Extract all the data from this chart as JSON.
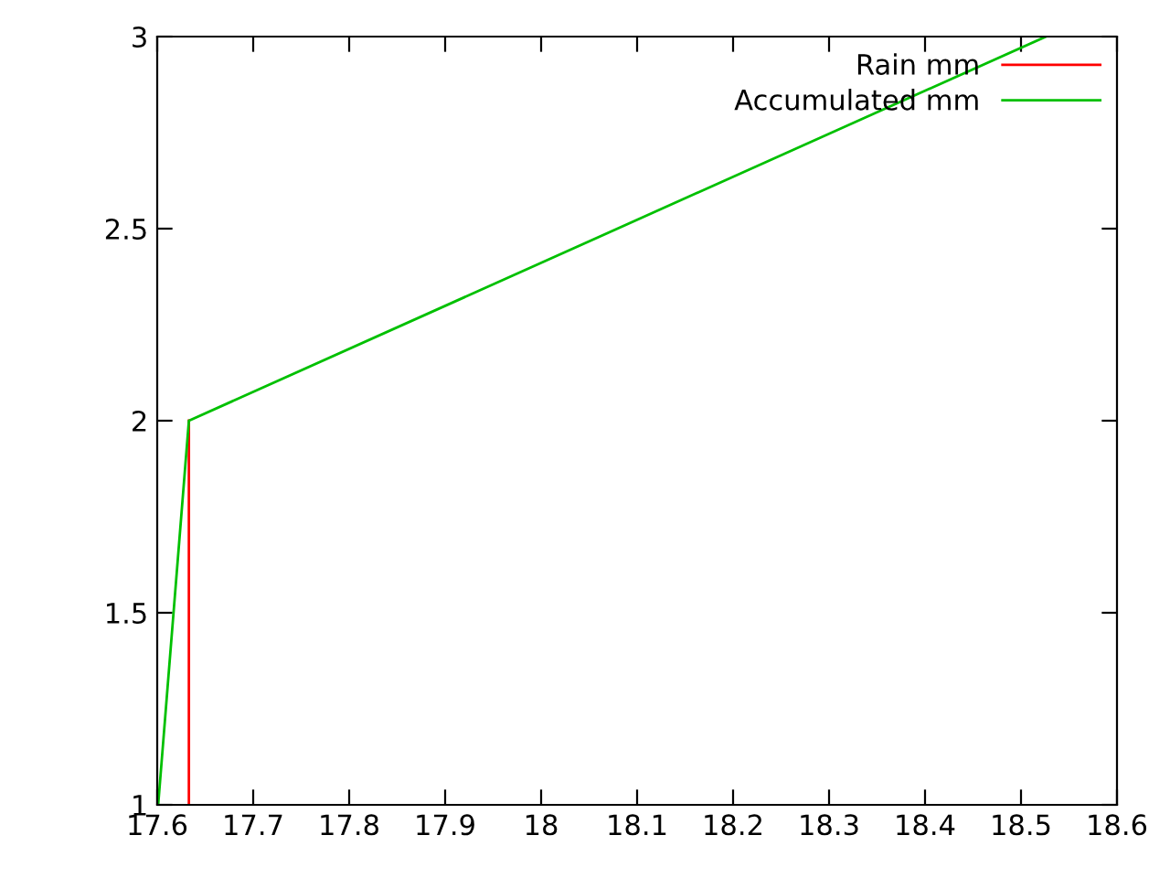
{
  "chart_data": {
    "type": "line",
    "series": [
      {
        "name": "Rain mm",
        "color": "#ff0000",
        "x": [
          17.633,
          17.633
        ],
        "values": [
          1,
          2
        ]
      },
      {
        "name": "Accumulated mm",
        "color": "#00c000",
        "x": [
          17.601,
          17.633,
          18.526
        ],
        "values": [
          1,
          2,
          3
        ]
      }
    ],
    "xlim": [
      17.6,
      18.6
    ],
    "ylim": [
      1,
      3
    ],
    "xticks": [
      17.6,
      17.7,
      17.8,
      17.9,
      18,
      18.1,
      18.2,
      18.3,
      18.4,
      18.5,
      18.6
    ],
    "yticks": [
      1,
      1.5,
      2,
      2.5,
      3
    ],
    "grid": false,
    "legend": "top right"
  }
}
